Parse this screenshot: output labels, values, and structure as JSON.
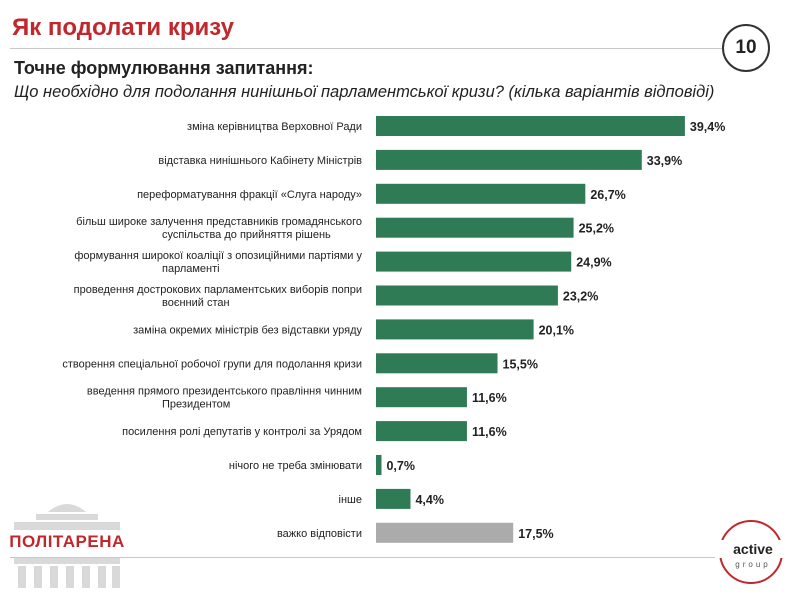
{
  "header": {
    "title": "Як подолати кризу",
    "page_number": "10"
  },
  "subtitle": "Точне формулювання запитання:",
  "question": "Що необхідно для подолання нинішньої парламентської кризи? (кілька варіантів відповіді)",
  "colors": {
    "bar": "#2e7b56",
    "bar_neutral": "#ababab",
    "accent": "#c0282d"
  },
  "logos": {
    "left": "ПОЛІТАРЕНА",
    "right_name": "active",
    "right_sub": "group"
  },
  "chart_data": {
    "type": "bar",
    "orientation": "horizontal",
    "unit": "%",
    "xlim": [
      0,
      40
    ],
    "categories": [
      [
        "зміна керівництва Верховної Ради"
      ],
      [
        "відставка нинішнього Кабінету Міністрів"
      ],
      [
        "переформатування фракції «Слуга народу»"
      ],
      [
        "більш широке залучення представників громадянського",
        "суспільства до прийняття рішень"
      ],
      [
        "формування широкої коаліції з опозиційними партіями у",
        "парламенті"
      ],
      [
        "проведення дострокових парламентських виборів попри",
        "воєнний стан"
      ],
      [
        "заміна окремих міністрів без відставки уряду"
      ],
      [
        "створення спеціальної робочої групи для подолання кризи"
      ],
      [
        "введення прямого президентського правління чинним",
        "Президентом"
      ],
      [
        "посилення ролі депутатів у контролі за Урядом"
      ],
      [
        "нічого не треба змінювати"
      ],
      [
        "інше"
      ],
      [
        "важко відповісти"
      ]
    ],
    "values": [
      39.4,
      33.9,
      26.7,
      25.2,
      24.9,
      23.2,
      20.1,
      15.5,
      11.6,
      11.6,
      0.7,
      4.4,
      17.5
    ],
    "value_labels": [
      "39,4%",
      "33,9%",
      "26,7%",
      "25,2%",
      "24,9%",
      "23,2%",
      "20,1%",
      "15,5%",
      "11,6%",
      "11,6%",
      "0,7%",
      "4,4%",
      "17,5%"
    ],
    "highlight": [
      false,
      false,
      false,
      false,
      false,
      false,
      false,
      false,
      false,
      false,
      false,
      false,
      true
    ]
  }
}
